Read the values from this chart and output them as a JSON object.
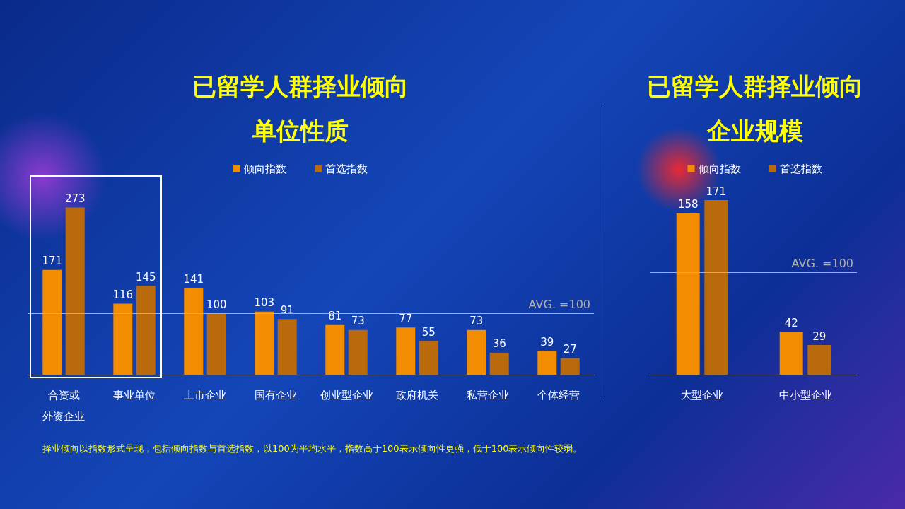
{
  "chart_data": [
    {
      "type": "bar",
      "title": "已留学人群择业倾向",
      "subtitle": "单位性质",
      "categories": [
        "合资或外资企业",
        "事业单位",
        "上市企业",
        "国有企业",
        "创业型企业",
        "政府机关",
        "私营企业",
        "个体经营"
      ],
      "series": [
        {
          "name": "倾向指数",
          "color": "#f28c00",
          "values": [
            171,
            116,
            141,
            103,
            81,
            77,
            73,
            39
          ]
        },
        {
          "name": "首选指数",
          "color": "#b86a0c",
          "values": [
            273,
            145,
            100,
            91,
            73,
            55,
            36,
            27
          ]
        }
      ],
      "data_labels": true,
      "legend": "top",
      "tick_labels": "x",
      "grid": false,
      "ref_lines": [
        {
          "axis": "y",
          "value": 100,
          "label": "AVG. =100",
          "color": "#b0b0b0"
        }
      ],
      "annotations": [
        "择业倾向以指数形式呈现，包括倾向指数与首选指数，以100为平均水平，指数高于100表示倾向性更强，低于100表示倾向性较弱。"
      ]
    },
    {
      "type": "bar",
      "title": "已留学人群择业倾向",
      "subtitle": "企业规模",
      "categories": [
        "大型企业",
        "中小型企业"
      ],
      "series": [
        {
          "name": "倾向指数",
          "color": "#f28c00",
          "values": [
            158,
            42
          ]
        },
        {
          "name": "首选指数",
          "color": "#b86a0c",
          "values": [
            171,
            29
          ]
        }
      ],
      "data_labels": true,
      "legend": "top",
      "tick_labels": "x",
      "grid": false,
      "ref_lines": [
        {
          "axis": "y",
          "value": 100,
          "label": "AVG. =100",
          "color": "#b0b0b0"
        }
      ]
    }
  ]
}
